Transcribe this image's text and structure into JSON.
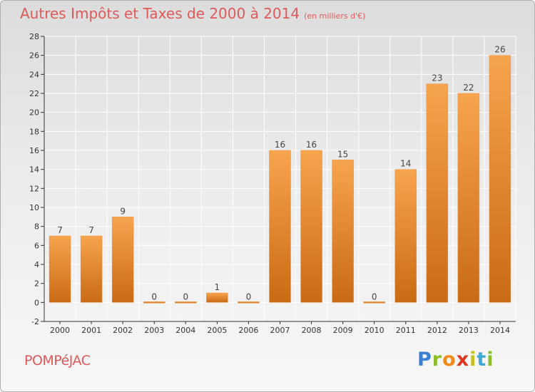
{
  "title": "Autres Impôts et Taxes de 2000 à 2014",
  "subtitle": "(en milliers d'€)",
  "town": "POMPéJAC",
  "logo": "Proxiti",
  "colors": {
    "bar_light": "#f7a44e",
    "bar_dark": "#c96b14",
    "title": "#de5a5a",
    "axis": "#333333",
    "grid": "#ffffff"
  },
  "chart_data": {
    "type": "bar",
    "title": "Autres Impôts et Taxes de 2000 à 2014",
    "subtitle": "(en milliers d'€)",
    "xlabel": "",
    "ylabel": "",
    "categories": [
      "2000",
      "2001",
      "2002",
      "2003",
      "2004",
      "2005",
      "2006",
      "2007",
      "2008",
      "2009",
      "2010",
      "2011",
      "2012",
      "2013",
      "2014"
    ],
    "values": [
      7,
      7,
      9,
      0,
      0,
      1,
      0,
      16,
      16,
      15,
      0,
      14,
      23,
      22,
      26
    ],
    "labels": [
      "7",
      "7",
      "9",
      "0",
      "0",
      "1",
      "0",
      "16",
      "16",
      "15",
      "0",
      "14",
      "23",
      "22",
      "26"
    ],
    "ylim": [
      -2,
      28
    ],
    "yticks": [
      -2,
      0,
      2,
      4,
      6,
      8,
      10,
      12,
      14,
      16,
      18,
      20,
      22,
      24,
      26,
      28
    ],
    "grid": true,
    "legend": "none"
  }
}
